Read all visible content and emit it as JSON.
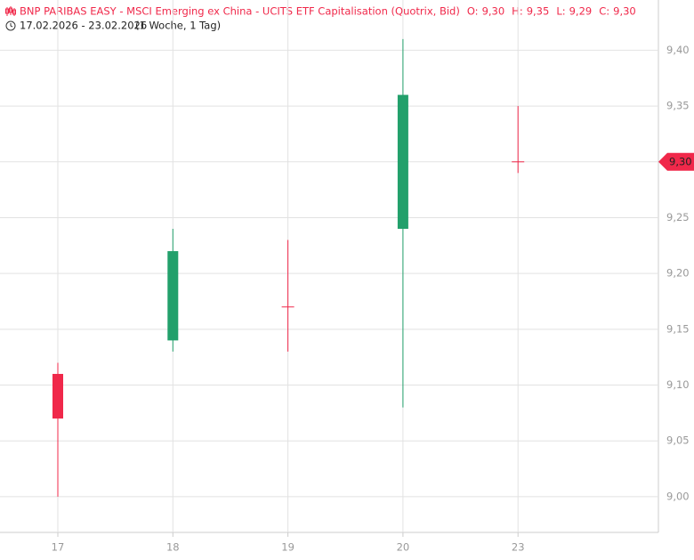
{
  "chart_data": {
    "type": "candlestick",
    "title": "BNP PARIBAS EASY - MSCI Emerging ex China - UCITS ETF Capitalisation (Quotrix, Bid)",
    "ohlc_legend": [
      {
        "label": "O:",
        "value": "9,30"
      },
      {
        "label": "H:",
        "value": "9,35"
      },
      {
        "label": "L:",
        "value": "9,29"
      },
      {
        "label": "C:",
        "value": "9,30"
      }
    ],
    "date_range": "17.02.2026 - 23.02.2026",
    "period": "(1 Woche, 1 Tag)",
    "categories": [
      "17",
      "18",
      "19",
      "20",
      "23"
    ],
    "open": [
      9.11,
      9.14,
      9.17,
      9.24,
      9.3
    ],
    "high": [
      9.12,
      9.24,
      9.23,
      9.41,
      9.35
    ],
    "low": [
      9.0,
      9.13,
      9.13,
      9.08,
      9.29
    ],
    "close": [
      9.07,
      9.22,
      9.17,
      9.36,
      9.3
    ],
    "up_color": "#22a06b",
    "down_color": "#f0284a",
    "last_price_label": "9,30",
    "ylim": [
      8.968,
      9.445
    ],
    "yticks": [
      {
        "value": 9.0,
        "label": "9,00"
      },
      {
        "value": 9.05,
        "label": "9,05"
      },
      {
        "value": 9.1,
        "label": "9,10"
      },
      {
        "value": 9.15,
        "label": "9,15"
      },
      {
        "value": 9.2,
        "label": "9,20"
      },
      {
        "value": 9.25,
        "label": "9,25"
      },
      {
        "value": 9.3,
        "label": "9,30"
      },
      {
        "value": 9.35,
        "label": "9,35"
      },
      {
        "value": 9.4,
        "label": "9,40"
      }
    ],
    "grid": true
  }
}
